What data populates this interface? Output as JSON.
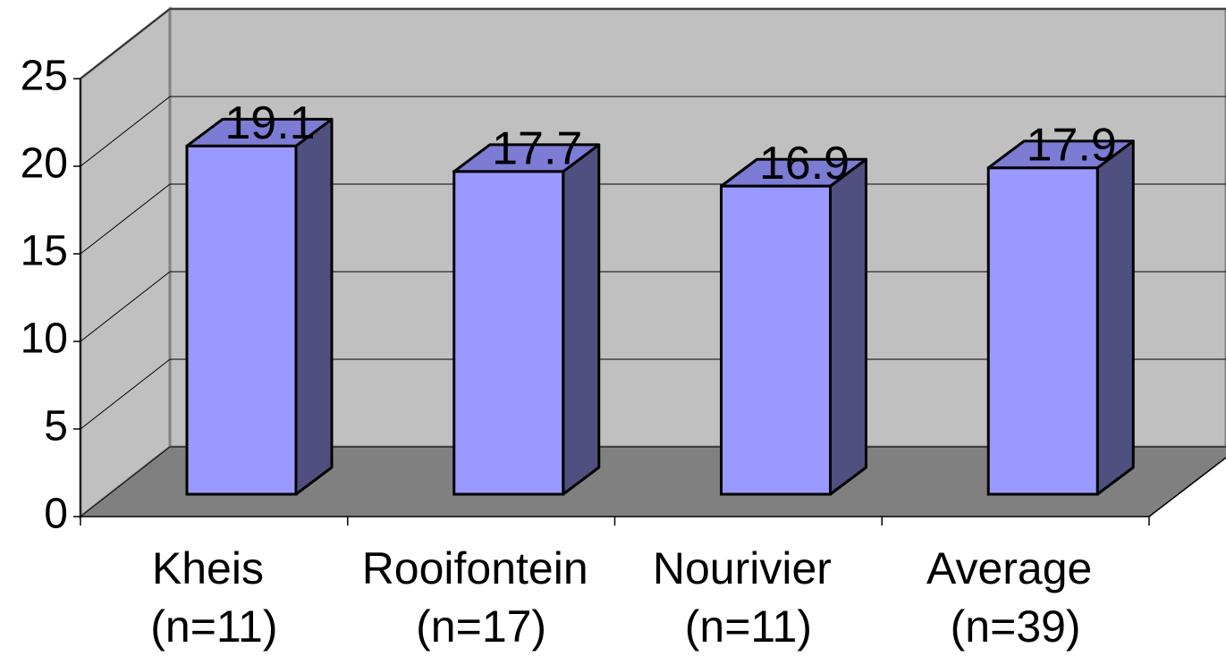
{
  "chart_data": {
    "type": "bar3d",
    "categories": [
      "Kheis (n=11)",
      "Rooifontein (n=17)",
      "Nourivier (n=11)",
      "Average (n=39)"
    ],
    "values": [
      19.1,
      17.7,
      16.9,
      17.9
    ],
    "color": "#9999ff",
    "ylim": [
      0,
      25
    ],
    "yticks": [
      0,
      5,
      10,
      15,
      20,
      25
    ],
    "grid": true
  }
}
